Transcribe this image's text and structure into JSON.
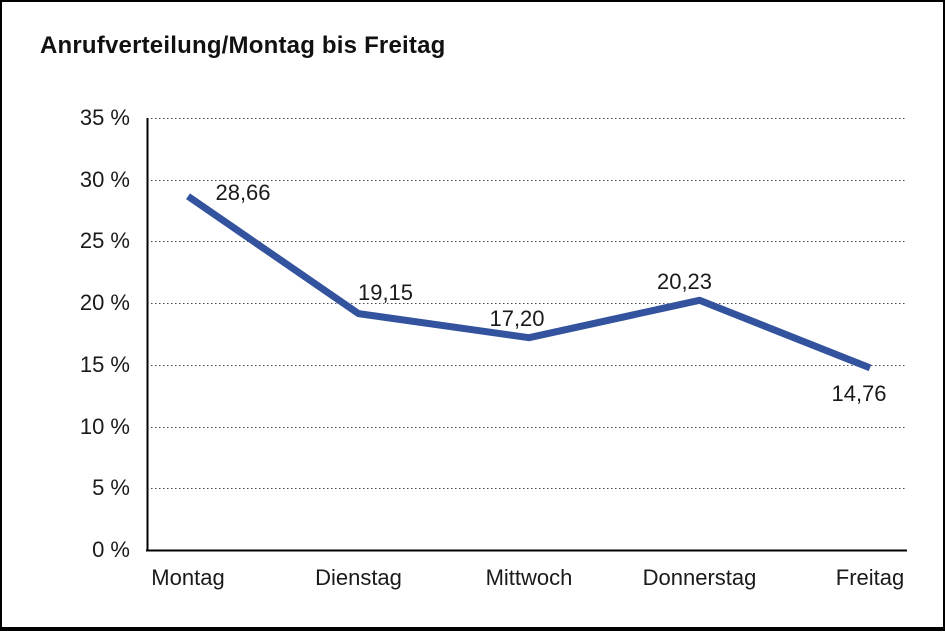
{
  "title": "Anrufverteilung/Montag bis Freitag",
  "colors": {
    "line": "#33539e",
    "axis": "#000000",
    "grid": "#4a4a4a",
    "text": "#1a1a1a",
    "frame_border": "#000000",
    "background": "#ffffff"
  },
  "chart_data": {
    "type": "line",
    "title": "Anrufverteilung/Montag bis Freitag",
    "categories": [
      "Montag",
      "Dienstag",
      "Mittwoch",
      "Donnerstag",
      "Freitag"
    ],
    "values": [
      28.66,
      19.15,
      17.2,
      20.23,
      14.76
    ],
    "value_labels": [
      "28,66",
      "19,15",
      "17,20",
      "20,23",
      "14,76"
    ],
    "unit": "%",
    "y_ticks": [
      0,
      5,
      10,
      15,
      20,
      25,
      30,
      35
    ],
    "y_tick_labels": [
      "0 %",
      "5 %",
      "10 %",
      "15 %",
      "20 %",
      "25 %",
      "30 %",
      "35 %"
    ],
    "ylim": [
      0,
      35
    ],
    "xlabel": "",
    "ylabel": "",
    "grid": "horizontal-dotted",
    "legend": "none",
    "line_color": "#33539e"
  }
}
